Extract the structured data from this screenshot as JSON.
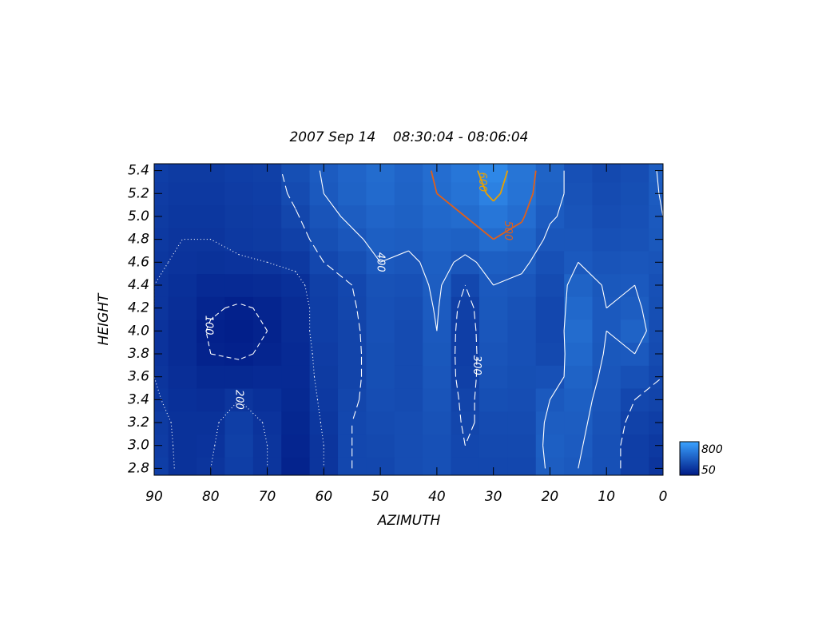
{
  "chart_data": {
    "type": "contour",
    "title": "2007 Sep 14    08:30:04 - 08:06:04",
    "xlabel": "AZIMUTH",
    "ylabel": "HEIGHT",
    "x": [
      90,
      85,
      80,
      75,
      70,
      65,
      60,
      55,
      50,
      45,
      40,
      35,
      30,
      25,
      20,
      15,
      10,
      5,
      0
    ],
    "y": [
      2.8,
      3.0,
      3.2,
      3.4,
      3.6,
      3.8,
      4.0,
      4.2,
      4.4,
      4.6,
      4.8,
      5.0,
      5.2,
      5.4
    ],
    "z": [
      [
        250,
        180,
        200,
        250,
        200,
        100,
        200,
        300,
        300,
        330,
        350,
        300,
        300,
        300,
        420,
        400,
        350,
        250,
        200
      ],
      [
        240,
        180,
        190,
        260,
        200,
        110,
        200,
        300,
        310,
        330,
        350,
        300,
        310,
        310,
        430,
        410,
        350,
        250,
        220
      ],
      [
        230,
        180,
        180,
        250,
        190,
        120,
        210,
        300,
        320,
        330,
        360,
        290,
        320,
        320,
        420,
        420,
        360,
        270,
        250
      ],
      [
        210,
        170,
        160,
        200,
        170,
        130,
        220,
        290,
        330,
        320,
        370,
        280,
        340,
        330,
        400,
        430,
        370,
        300,
        280
      ],
      [
        200,
        160,
        130,
        130,
        140,
        140,
        230,
        280,
        340,
        320,
        380,
        260,
        360,
        340,
        350,
        450,
        380,
        350,
        300
      ],
      [
        190,
        150,
        100,
        90,
        110,
        140,
        240,
        280,
        340,
        320,
        390,
        250,
        370,
        350,
        310,
        480,
        390,
        400,
        320
      ],
      [
        190,
        150,
        90,
        80,
        100,
        150,
        250,
        280,
        350,
        320,
        400,
        250,
        380,
        350,
        300,
        500,
        400,
        450,
        330
      ],
      [
        200,
        160,
        110,
        90,
        110,
        150,
        250,
        290,
        350,
        330,
        410,
        260,
        390,
        360,
        300,
        480,
        400,
        420,
        340
      ],
      [
        200,
        170,
        140,
        140,
        150,
        170,
        260,
        300,
        360,
        350,
        420,
        300,
        400,
        380,
        320,
        450,
        390,
        400,
        350
      ],
      [
        210,
        190,
        180,
        190,
        200,
        220,
        300,
        340,
        400,
        380,
        430,
        380,
        430,
        420,
        350,
        400,
        370,
        380,
        370
      ],
      [
        220,
        200,
        200,
        220,
        230,
        260,
        340,
        380,
        430,
        420,
        450,
        440,
        500,
        470,
        380,
        380,
        350,
        360,
        390
      ],
      [
        230,
        210,
        210,
        230,
        240,
        290,
        370,
        420,
        460,
        440,
        480,
        500,
        560,
        510,
        410,
        370,
        330,
        350,
        400
      ],
      [
        240,
        220,
        220,
        240,
        250,
        320,
        400,
        450,
        490,
        450,
        500,
        540,
        620,
        540,
        440,
        360,
        320,
        340,
        410
      ],
      [
        250,
        230,
        230,
        250,
        260,
        340,
        410,
        460,
        500,
        460,
        510,
        560,
        650,
        550,
        450,
        350,
        310,
        330,
        420
      ]
    ],
    "xlim": [
      90,
      0
    ],
    "xticks": [
      90,
      80,
      70,
      60,
      50,
      40,
      30,
      20,
      10,
      0
    ],
    "ylim": [
      2.74,
      5.46
    ],
    "yticks": [
      2.8,
      {
        "value": 3,
        "label": "3.0"
      },
      3.2,
      3.4,
      3.6,
      3.8,
      {
        "value": 4,
        "label": "4.0"
      },
      4.2,
      4.4,
      4.6,
      4.8,
      {
        "value": 5,
        "label": "5.0"
      },
      5.2,
      5.4
    ],
    "colorbar": {
      "min": 50,
      "max": 800,
      "colors": [
        "#001a85",
        "#3aa2ff"
      ]
    },
    "contours": [
      {
        "level": 100,
        "color": "#ffffff",
        "dash": "6,4"
      },
      {
        "level": 200,
        "color": "#ffffff",
        "dash": "1,3"
      },
      {
        "level": 300,
        "color": "#ffffff",
        "dash": "10,5"
      },
      {
        "level": 400,
        "color": "#ffffff",
        "dash": "none"
      },
      {
        "level": 500,
        "color": "#e0601a",
        "dash": "none"
      },
      {
        "level": 600,
        "color": "#e8a000",
        "dash": "none"
      }
    ]
  }
}
